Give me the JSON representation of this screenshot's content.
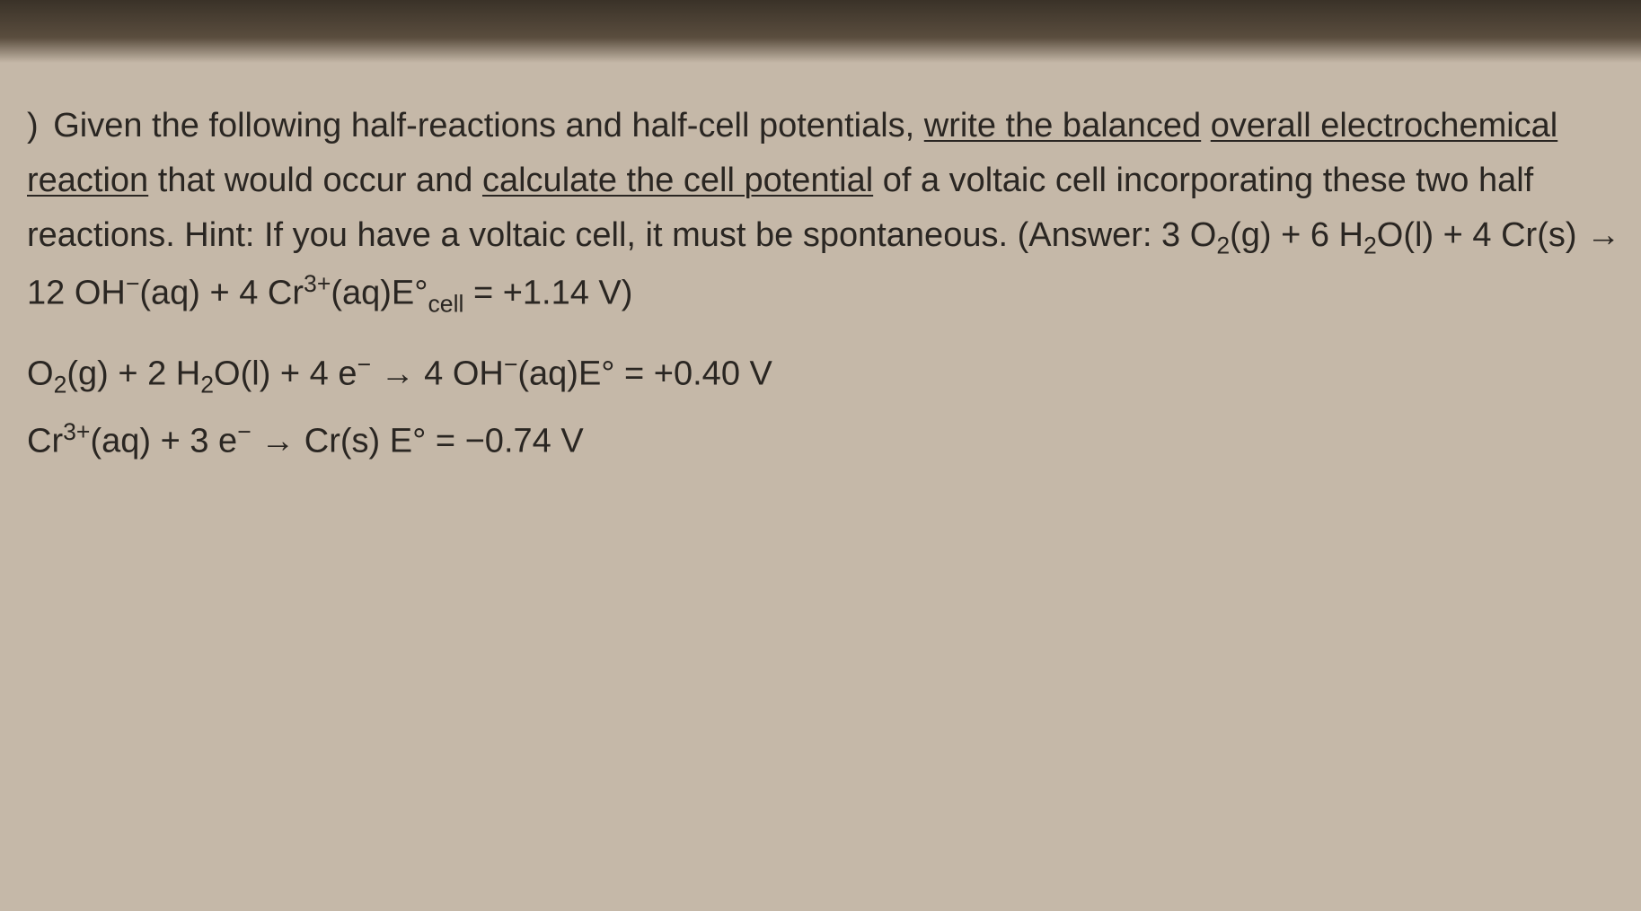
{
  "question": {
    "lead_paren": ")",
    "intro": "Given the following half-reactions and half-cell potentials, ",
    "underline1": "write the balanced",
    "underline2": "overall electrochemical reaction",
    "mid1": " that would occur and ",
    "underline3": "calculate the cell potential",
    "mid2": " of a voltaic cell incorporating these two half reactions.  Hint:  If you have a voltaic cell, it must be spontaneous.   (Answer: 3 O",
    "sub_o2": "2",
    "mid3": "(g) + 6 H",
    "sub_h2o_2": "2",
    "mid4": "O(l) + 4 Cr(s) → 12 OH",
    "sup_oh_minus": "−",
    "mid5": "(aq) + 4 Cr",
    "sup_cr3": "3+",
    "mid6": "(aq)E°",
    "sub_cell": "cell",
    "mid7": " = +1.14 V)"
  },
  "halfReactions": [
    {
      "p1": "O",
      "sub1": "2",
      "p2": "(g) + 2 H",
      "sub2": "2",
      "p3": "O(l) + 4 e",
      "sup1": "−",
      "p4": " → 4 OH",
      "sup2": "−",
      "p5": "(aq)E° = +0.40 V"
    },
    {
      "p1": "Cr",
      "sup1": "3+",
      "p2": "(aq) + 3 e",
      "sup2": "−",
      "p3": " → Cr(s) E° = −0.74 V"
    }
  ],
  "colors": {
    "background": "#c5b8a8",
    "text": "#2a2622",
    "darkTop": "#3a3228"
  },
  "typography": {
    "fontFamily": "Comic Sans MS",
    "questionFontSize": 38,
    "equationFontSize": 38,
    "lineHeight": 1.6
  }
}
